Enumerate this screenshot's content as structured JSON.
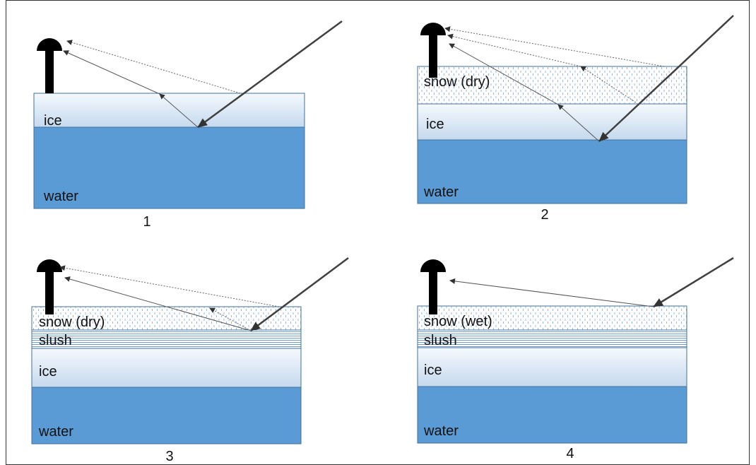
{
  "panels": [
    {
      "label": "1",
      "layers": [
        "ice",
        "water"
      ]
    },
    {
      "label": "2",
      "layers": [
        "snow (dry)",
        "ice",
        "water"
      ]
    },
    {
      "label": "3",
      "layers": [
        "snow (dry)",
        "slush",
        "ice",
        "water"
      ]
    },
    {
      "label": "4",
      "layers": [
        "snow (wet)",
        "slush",
        "ice",
        "water"
      ]
    }
  ]
}
